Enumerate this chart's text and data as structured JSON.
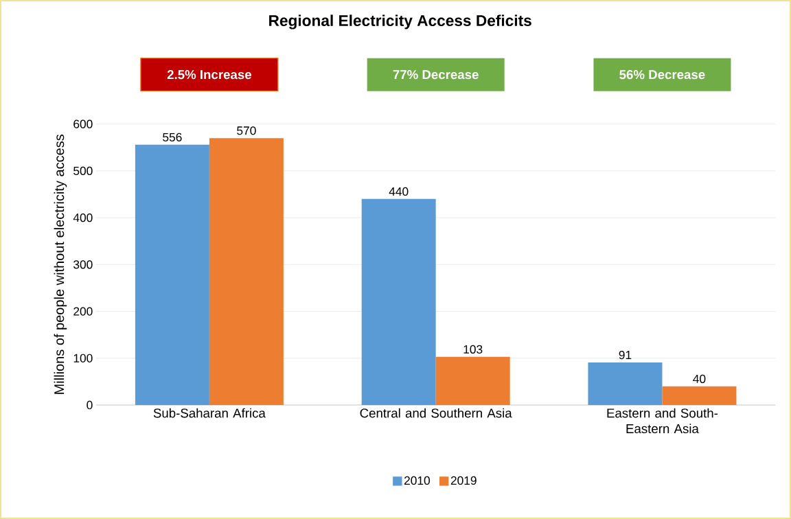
{
  "chart_data": {
    "type": "bar",
    "title": "Regional Electricity Access Deficits",
    "ylabel": "Millions of people without electricity access",
    "categories": [
      "Sub-Saharan Africa",
      "Central and Southern Asia",
      "Eastern and South-Eastern Asia"
    ],
    "series": [
      {
        "name": "2010",
        "color": "#5b9bd5",
        "values": [
          556,
          440,
          91
        ]
      },
      {
        "name": "2019",
        "color": "#ed7d31",
        "values": [
          570,
          103,
          40
        ]
      }
    ],
    "annotations": [
      "2.5% Increase",
      "77% Decrease",
      "56% Decrease"
    ],
    "ylim": [
      0,
      600
    ],
    "yticks": [
      0,
      100,
      200,
      300,
      400,
      500,
      600
    ],
    "grid": "y",
    "legend": "bottom",
    "data_labels": true
  }
}
